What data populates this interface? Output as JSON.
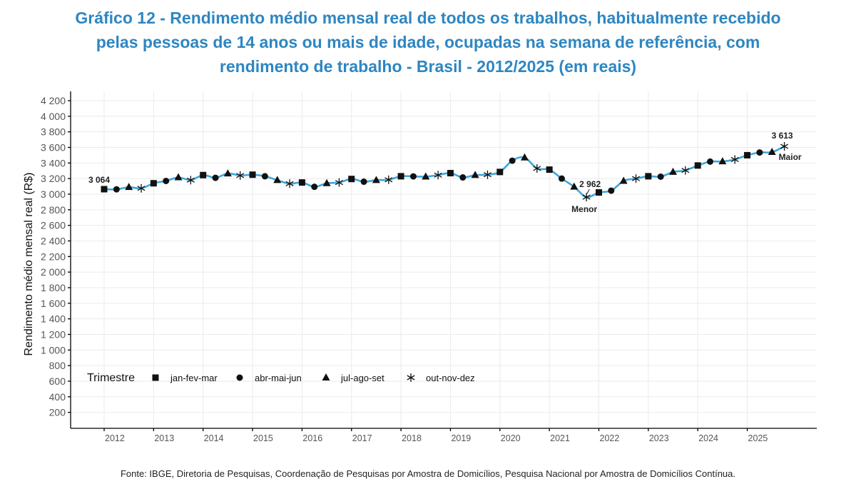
{
  "title_lines": [
    "Gráfico 12 - Rendimento médio mensal real de todos os trabalhos, habitualmente recebido",
    "pelas pessoas de 14 anos ou mais de idade, ocupadas na semana de referência, com",
    "rendimento de trabalho - Brasil - 2012/2025 (em reais)"
  ],
  "footer": "Fonte: IBGE, Diretoria de Pesquisas, Coordenação de Pesquisas por Amostra de Domicílios, Pesquisa Nacional por Amostra de Domicílios Contínua.",
  "colors": {
    "title": "#2e86c1",
    "line": "#3aa8dc",
    "marker": "#111111"
  },
  "chart_data": {
    "type": "line",
    "title": "Gráfico 12 - Rendimento médio mensal real de todos os trabalhos, habitualmente recebido pelas pessoas de 14 anos ou mais de idade, ocupadas na semana de referência, com rendimento de trabalho - Brasil - 2012/2025 (em reais)",
    "xlabel": "",
    "ylabel": "Rendimento médio mensal real (R$)",
    "ylim": [
      0,
      4300
    ],
    "yticks": [
      200,
      400,
      600,
      800,
      1000,
      1200,
      1400,
      1600,
      1800,
      2000,
      2200,
      2400,
      2600,
      2800,
      3000,
      3200,
      3400,
      3600,
      3800,
      4000,
      4200
    ],
    "ytick_labels": [
      "200",
      "400",
      "600",
      "800",
      "1 000",
      "1 200",
      "1 400",
      "1 600",
      "1 800",
      "2 000",
      "2 200",
      "2 400",
      "2 600",
      "2 800",
      "3 000",
      "3 200",
      "3 400",
      "3 600",
      "3 800",
      "4 000",
      "4 200"
    ],
    "xtick_labels": [
      "2012",
      "2013",
      "2014",
      "2015",
      "2016",
      "2017",
      "2018",
      "2019",
      "2020",
      "2021",
      "2022",
      "2023",
      "2024",
      "2025"
    ],
    "grid": true,
    "legend": {
      "title": "Trimestre",
      "placement": "bottom-left",
      "entries": [
        {
          "label": "jan-fev-mar",
          "marker": "square"
        },
        {
          "label": "abr-mai-jun",
          "marker": "circle"
        },
        {
          "label": "jul-ago-set",
          "marker": "triangle"
        },
        {
          "label": "out-nov-dez",
          "marker": "asterisk"
        }
      ]
    },
    "series": [
      {
        "name": "Rendimento médio mensal real",
        "x": [
          "2012 T1",
          "2012 T2",
          "2012 T3",
          "2012 T4",
          "2013 T1",
          "2013 T2",
          "2013 T3",
          "2013 T4",
          "2014 T1",
          "2014 T2",
          "2014 T3",
          "2014 T4",
          "2015 T1",
          "2015 T2",
          "2015 T3",
          "2015 T4",
          "2016 T1",
          "2016 T2",
          "2016 T3",
          "2016 T4",
          "2017 T1",
          "2017 T2",
          "2017 T3",
          "2017 T4",
          "2018 T1",
          "2018 T2",
          "2018 T3",
          "2018 T4",
          "2019 T1",
          "2019 T2",
          "2019 T3",
          "2019 T4",
          "2020 T1",
          "2020 T2",
          "2020 T3",
          "2020 T4",
          "2021 T1",
          "2021 T2",
          "2021 T3",
          "2021 T4",
          "2022 T1",
          "2022 T2",
          "2022 T3",
          "2022 T4",
          "2023 T1",
          "2023 T2",
          "2023 T3",
          "2023 T4",
          "2024 T1",
          "2024 T2",
          "2024 T3",
          "2024 T4",
          "2025 T1",
          "2025 T2",
          "2025 T3",
          "2025 T4"
        ],
        "values": [
          3064,
          3062,
          3090,
          3075,
          3140,
          3170,
          3215,
          3180,
          3245,
          3210,
          3265,
          3240,
          3250,
          3230,
          3180,
          3135,
          3150,
          3095,
          3140,
          3150,
          3195,
          3160,
          3180,
          3185,
          3230,
          3228,
          3225,
          3245,
          3270,
          3215,
          3245,
          3250,
          3285,
          3430,
          3470,
          3330,
          3315,
          3200,
          3095,
          2962,
          3022,
          3045,
          3170,
          3200,
          3230,
          3225,
          3285,
          3305,
          3368,
          3418,
          3420,
          3445,
          3500,
          3535,
          3540,
          3613
        ]
      }
    ],
    "annotations": [
      {
        "index": 0,
        "text": "3 064"
      },
      {
        "index": 39,
        "text": "2 962",
        "label": "Menor"
      },
      {
        "index": 55,
        "text": "3 613",
        "label": "Maior"
      }
    ]
  }
}
